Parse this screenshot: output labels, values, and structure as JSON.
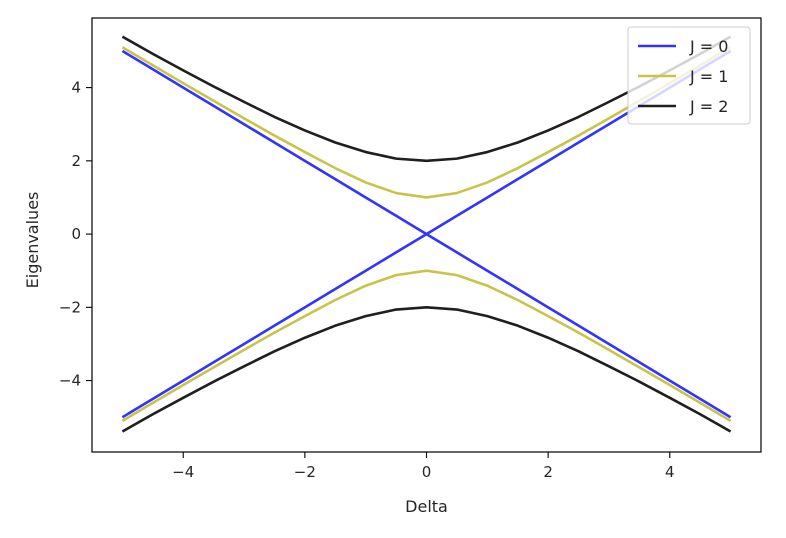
{
  "chart_data": {
    "type": "line",
    "title": "",
    "xlabel": "Delta",
    "ylabel": "Eigenvalues",
    "xlim": [
      -5.5,
      5.5
    ],
    "ylim": [
      -5.95,
      5.9
    ],
    "x_ticks": [
      -4,
      -2,
      0,
      2,
      4
    ],
    "x_tick_labels": [
      "−4",
      "−2",
      "0",
      "2",
      "4"
    ],
    "y_ticks": [
      -4,
      -2,
      0,
      2,
      4
    ],
    "y_tick_labels": [
      "−4",
      "−2",
      "0",
      "2",
      "4"
    ],
    "grid": false,
    "legend_position": "top-right",
    "x": [
      -5,
      -4.5,
      -4,
      -3.5,
      -3,
      -2.5,
      -2,
      -1.5,
      -1,
      -0.5,
      0,
      0.5,
      1,
      1.5,
      2,
      2.5,
      3,
      3.5,
      4,
      4.5,
      5
    ],
    "series": [
      {
        "name": "J = 0",
        "color": "#3333ff",
        "upper": [
          5,
          4.5,
          4,
          3.5,
          3,
          2.5,
          2,
          1.5,
          1,
          0.5,
          0,
          0.5,
          1,
          1.5,
          2,
          2.5,
          3,
          3.5,
          4,
          4.5,
          5
        ],
        "lower": [
          -5,
          -4.5,
          -4,
          -3.5,
          -3,
          -2.5,
          -2,
          -1.5,
          -1,
          -0.5,
          0,
          -0.5,
          -1,
          -1.5,
          -2,
          -2.5,
          -3,
          -3.5,
          -4,
          -4.5,
          -5
        ]
      },
      {
        "name": "J = 1",
        "color": "#c8c44a",
        "upper": [
          5.1,
          4.61,
          4.12,
          3.64,
          3.16,
          2.69,
          2.24,
          1.8,
          1.41,
          1.12,
          1,
          1.12,
          1.41,
          1.8,
          2.24,
          2.69,
          3.16,
          3.64,
          4.12,
          4.61,
          5.1
        ],
        "lower": [
          -5.1,
          -4.61,
          -4.12,
          -3.64,
          -3.16,
          -2.69,
          -2.24,
          -1.8,
          -1.41,
          -1.12,
          -1,
          -1.12,
          -1.41,
          -1.8,
          -2.24,
          -2.69,
          -3.16,
          -3.64,
          -4.12,
          -4.61,
          -5.1
        ]
      },
      {
        "name": "J = 2",
        "color": "#1f1f1f",
        "upper": [
          5.39,
          4.92,
          4.47,
          4.03,
          3.61,
          3.2,
          2.83,
          2.5,
          2.24,
          2.06,
          2,
          2.06,
          2.24,
          2.5,
          2.83,
          3.2,
          3.61,
          4.03,
          4.47,
          4.92,
          5.39
        ],
        "lower": [
          -5.39,
          -4.92,
          -4.47,
          -4.03,
          -3.61,
          -3.2,
          -2.83,
          -2.5,
          -2.24,
          -2.06,
          -2,
          -2.06,
          -2.24,
          -2.5,
          -2.83,
          -3.2,
          -3.61,
          -4.03,
          -4.47,
          -4.92,
          -5.39
        ]
      }
    ]
  }
}
